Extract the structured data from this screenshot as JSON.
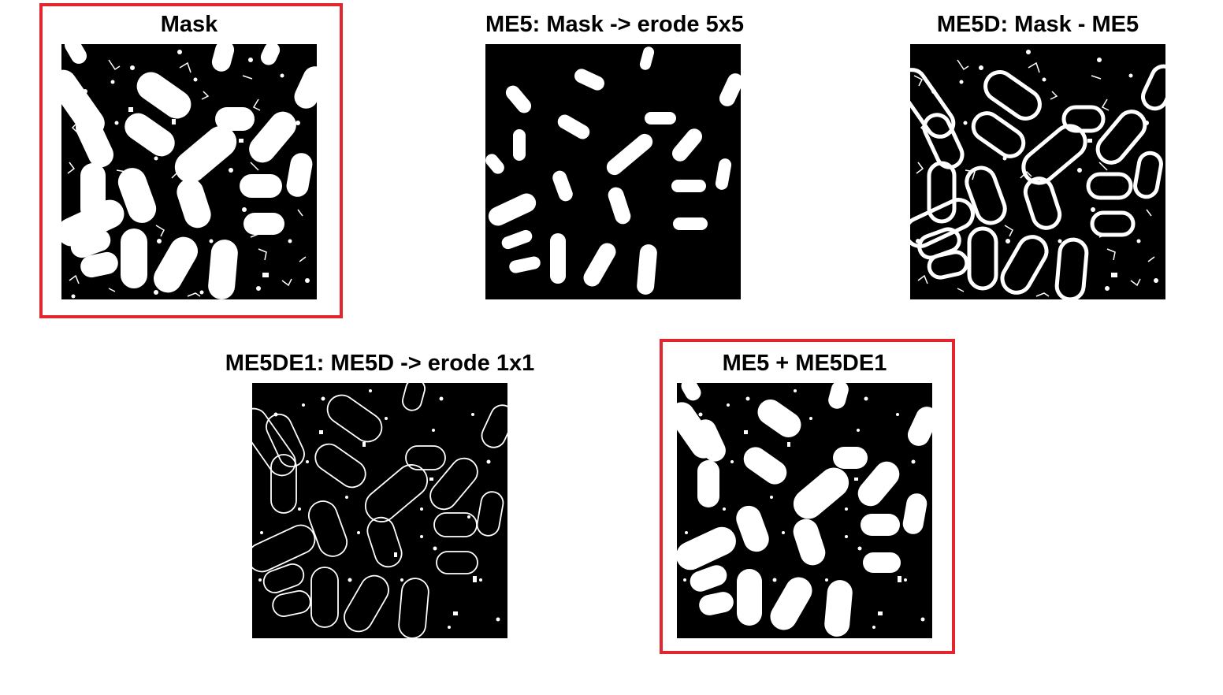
{
  "colors": {
    "highlight": "#e3252f",
    "background": "#ffffff",
    "image_background": "#000000",
    "image_foreground": "#ffffff"
  },
  "panels": [
    {
      "title": "Mask",
      "highlighted": true
    },
    {
      "title": "ME5: Mask -> erode 5x5",
      "highlighted": false
    },
    {
      "title": "ME5D: Mask - ME5",
      "highlighted": false
    },
    {
      "title": "ME5DE1: ME5D -> erode 1x1",
      "highlighted": false
    },
    {
      "title": "ME5 + ME5DE1",
      "highlighted": true
    }
  ]
}
